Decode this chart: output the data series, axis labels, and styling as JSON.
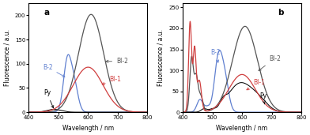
{
  "panel_a": {
    "label": "a",
    "xlim": [
      400,
      800
    ],
    "ylim": [
      0,
      225
    ],
    "yticks": [
      0,
      50,
      100,
      150,
      200
    ],
    "ylabel": "Fluorescence / a.u.",
    "xlabel": "Wavelength / nm"
  },
  "panel_b": {
    "label": "b",
    "xlim": [
      400,
      800
    ],
    "ylim": [
      0,
      260
    ],
    "yticks": [
      0,
      50,
      100,
      150,
      200,
      250
    ],
    "ylabel": "Fluorescence / a.u.",
    "xlabel": "Wavelength / nm"
  },
  "colors": {
    "BI2": "#555555",
    "BI1": "#d04040",
    "B2": "#6080d0",
    "Py": "#000000"
  }
}
